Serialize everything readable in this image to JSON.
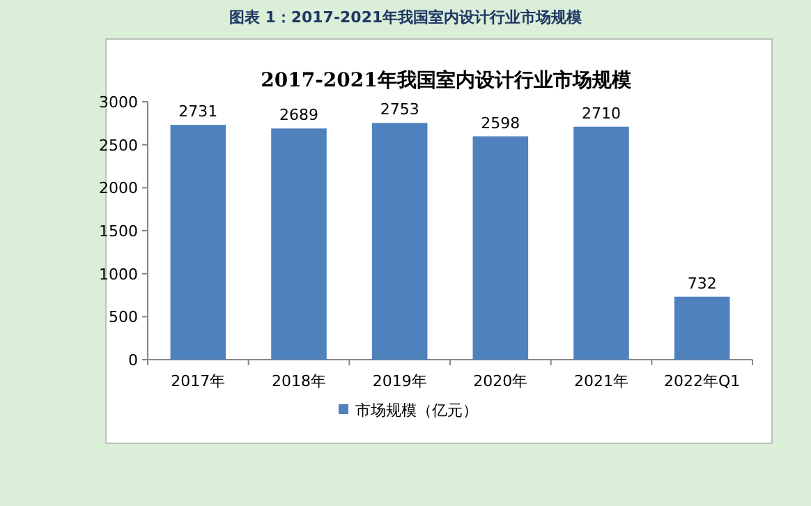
{
  "chart_data": {
    "type": "bar",
    "title": "2017-2021年我国室内设计行业市场规模",
    "annotations": [
      "图表 1：2017-2021年我国室内设计行业市场规模"
    ],
    "categories": [
      "2017年",
      "2018年",
      "2019年",
      "2020年",
      "2021年",
      "2022年Q1"
    ],
    "series": [
      {
        "name": "市场规模（亿元）",
        "color": "#4f81bd",
        "values": [
          2731,
          2689,
          2753,
          2598,
          2710,
          732
        ]
      }
    ],
    "ylim": [
      0,
      3000
    ],
    "yticks": [
      0,
      500,
      1000,
      1500,
      2000,
      2500,
      3000
    ],
    "data_labels": true,
    "legend": "bottom"
  }
}
